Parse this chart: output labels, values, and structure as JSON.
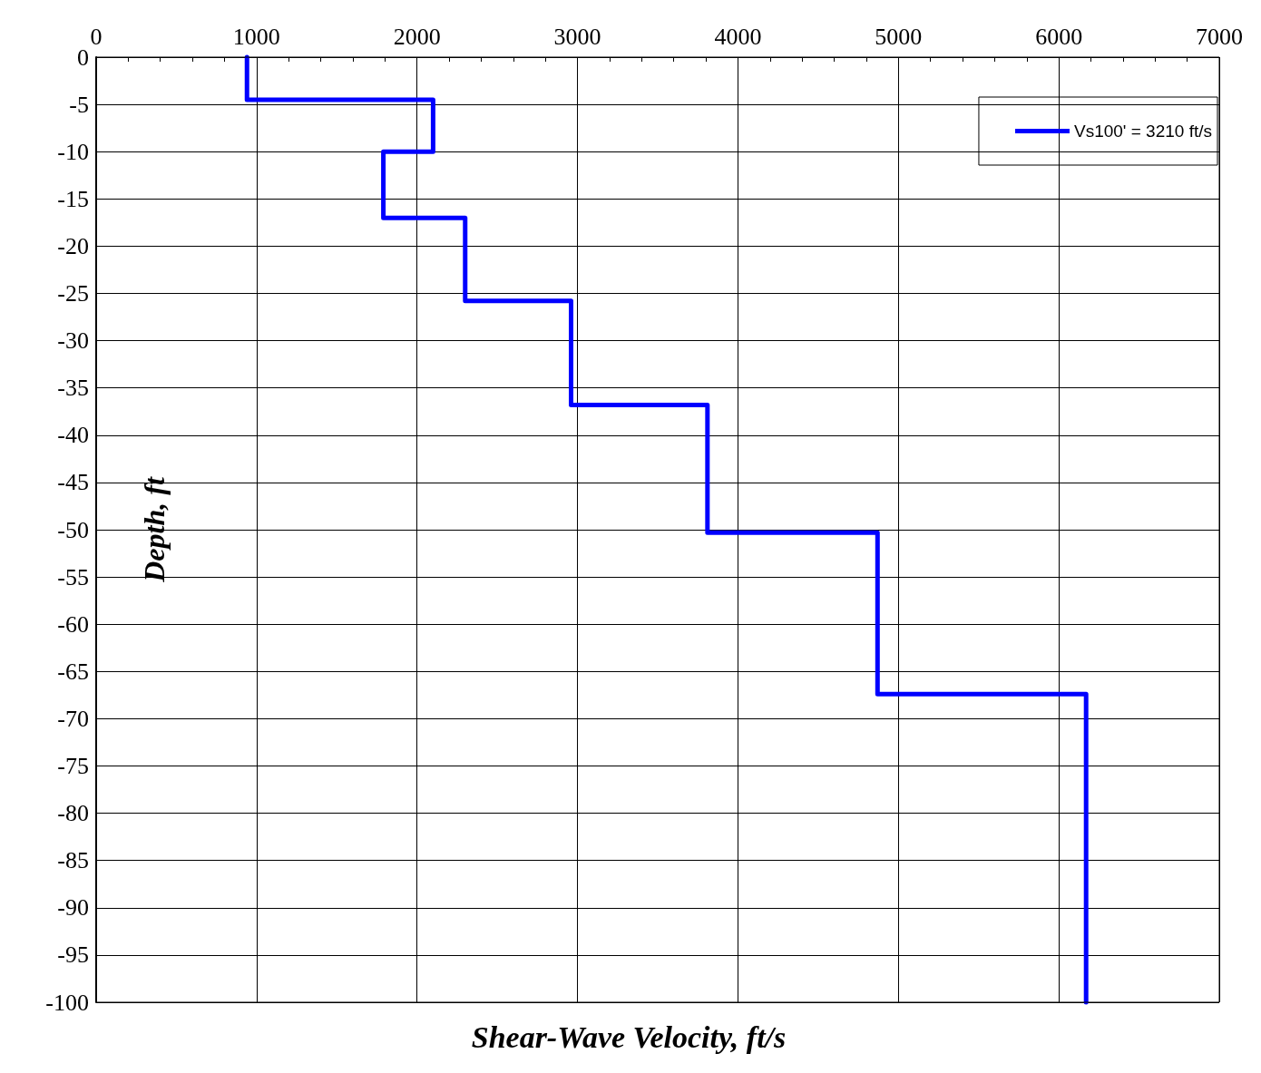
{
  "chart_data": {
    "type": "line",
    "xlabel": "Shear-Wave Velocity, ft/s",
    "ylabel": "Depth, ft",
    "series": [
      {
        "name": "Vs100' = 3210 ft/s",
        "color": "#0000ff",
        "x": [
          940,
          940,
          2100,
          2100,
          1790,
          1790,
          2300,
          2300,
          2960,
          2960,
          3810,
          3810,
          4870,
          4870,
          6170,
          6170
        ],
        "values": [
          0,
          -4.5,
          -4.5,
          -10,
          -10,
          -17,
          -17,
          -25.8,
          -25.8,
          -36.8,
          -36.8,
          -50.3,
          -50.3,
          -67.4,
          -67.4,
          -100
        ]
      }
    ],
    "xlim": [
      0,
      7000
    ],
    "xticks": [
      0,
      1000,
      2000,
      3000,
      4000,
      5000,
      6000,
      7000
    ],
    "ylim": [
      -100,
      0
    ],
    "yticks": [
      -100,
      -95,
      -90,
      -85,
      -80,
      -75,
      -70,
      -65,
      -60,
      -55,
      -50,
      -45,
      -40,
      -35,
      -30,
      -25,
      -20,
      -15,
      -10,
      -5,
      0
    ],
    "grid": true,
    "legend": "top right",
    "marker": "none",
    "line_style": "solid"
  }
}
